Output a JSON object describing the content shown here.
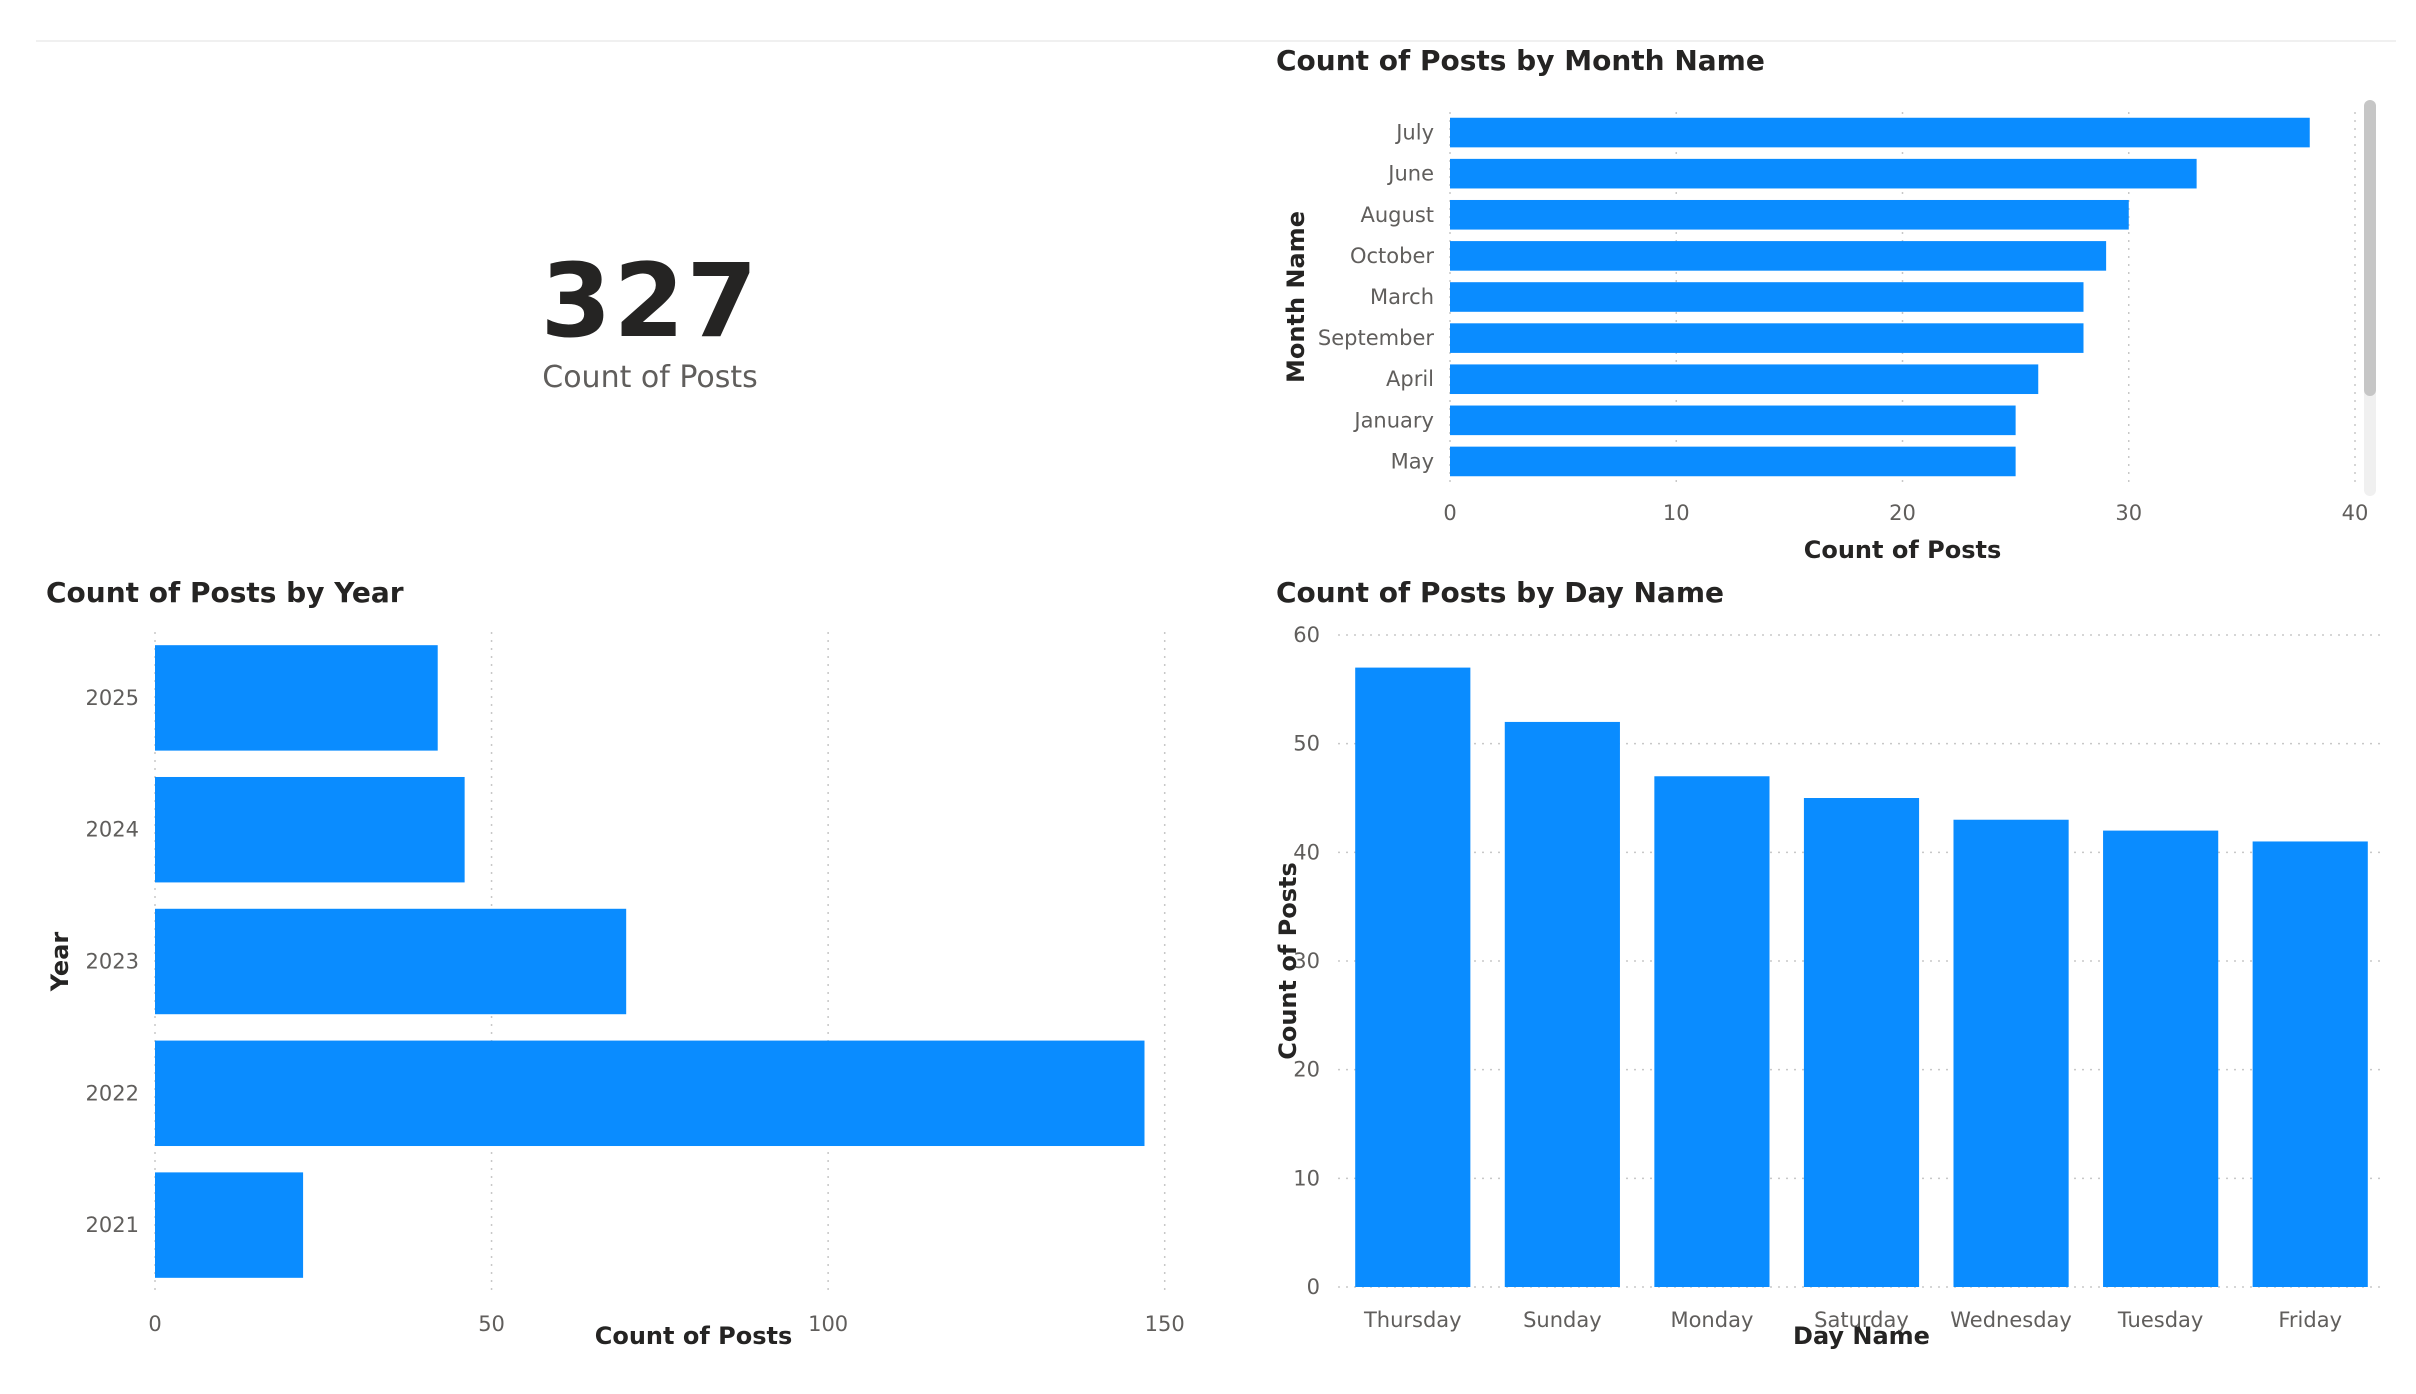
{
  "kpi": {
    "value": "327",
    "label": "Count of Posts"
  },
  "colors": {
    "bar": "#0A8CFF"
  },
  "chart_data": [
    {
      "type": "bar",
      "orientation": "horizontal",
      "title": "Count of Posts by Month Name",
      "xlabel": "Count of Posts",
      "ylabel": "Month Name",
      "categories": [
        "July",
        "June",
        "August",
        "October",
        "March",
        "September",
        "April",
        "January",
        "May"
      ],
      "values": [
        38,
        33,
        30,
        29,
        28,
        28,
        26,
        25,
        25
      ],
      "xlim": [
        0,
        40
      ],
      "xticks": [
        0,
        10,
        20,
        30,
        40
      ],
      "grid": true,
      "scrollable": true
    },
    {
      "type": "bar",
      "orientation": "horizontal",
      "title": "Count of Posts by Year",
      "xlabel": "Count of Posts",
      "ylabel": "Year",
      "categories": [
        "2025",
        "2024",
        "2023",
        "2022",
        "2021"
      ],
      "values": [
        42,
        46,
        70,
        147,
        22
      ],
      "xlim": [
        0,
        160
      ],
      "xticks": [
        0,
        50,
        100,
        150
      ],
      "grid": true
    },
    {
      "type": "bar",
      "orientation": "vertical",
      "title": "Count of Posts by Day Name",
      "xlabel": "Day Name",
      "ylabel": "Count of Posts",
      "categories": [
        "Thursday",
        "Sunday",
        "Monday",
        "Saturday",
        "Wednesday",
        "Tuesday",
        "Friday"
      ],
      "values": [
        57,
        52,
        47,
        45,
        43,
        42,
        41
      ],
      "ylim": [
        0,
        60
      ],
      "yticks": [
        0,
        10,
        20,
        30,
        40,
        50,
        60
      ],
      "grid": true
    }
  ]
}
